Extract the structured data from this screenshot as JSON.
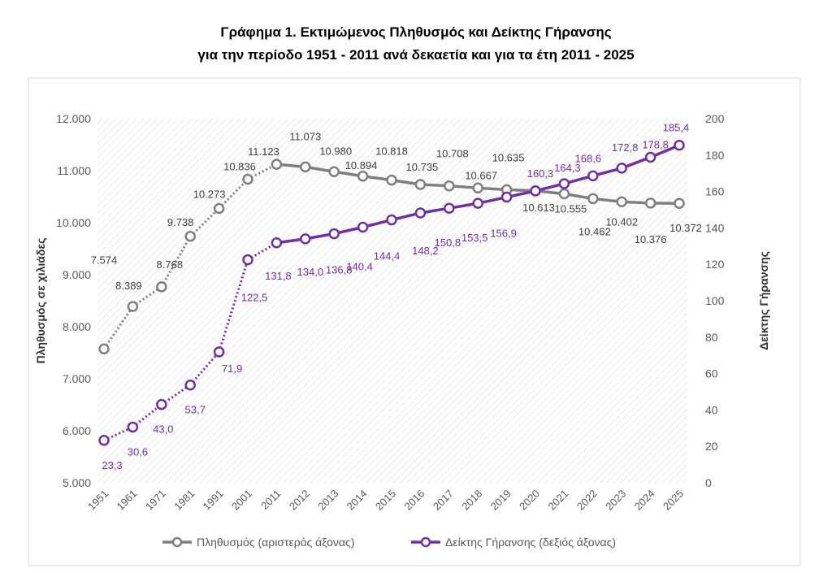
{
  "chart_data": {
    "type": "line",
    "title_line1": "Γράφημα 1. Εκτιμώμενος Πληθυσμός και Δείκτης Γήρανσης",
    "title_line2": "για την περίοδο 1951 - 2011 ανά δεκαετία και για τα έτη 2011 - 2025",
    "ylabel": "Πληθυσμός σε χιλιάδες",
    "y2label": "Δείκτης Γήρανσης",
    "ylim": [
      5000,
      12000
    ],
    "y2lim": [
      0,
      200
    ],
    "yticks": [
      "5.000",
      "6.000",
      "7.000",
      "8.000",
      "9.000",
      "10.000",
      "11.000",
      "12.000"
    ],
    "y2ticks": [
      "0",
      "20",
      "40",
      "60",
      "80",
      "100",
      "120",
      "140",
      "160",
      "180",
      "200"
    ],
    "categories": [
      "1951",
      "1961",
      "1971",
      "1981",
      "1991",
      "2001",
      "2011",
      "2012",
      "2013",
      "2014",
      "2015",
      "2016",
      "2017",
      "2018",
      "2019",
      "2020",
      "2021",
      "2022",
      "2023",
      "2024",
      "2025"
    ],
    "grid": "hatched background",
    "legend_position": "bottom",
    "series": [
      {
        "name": "Πληθυσμός (αριστερός άξονας)",
        "axis": "left",
        "color": "#7f7f7f",
        "values": [
          7574,
          8389,
          8768,
          9738,
          10273,
          10836,
          11123,
          11073,
          10980,
          10894,
          10818,
          10735,
          10708,
          10667,
          10635,
          10613,
          10555,
          10462,
          10402,
          10376,
          10372
        ],
        "labels": [
          "7.574",
          "8.389",
          "8.768",
          "9.738",
          "10.273",
          "10.836",
          "11.123",
          "11.073",
          "10.980",
          "10.894",
          "10.818",
          "10.735",
          "10.708",
          "10.667",
          "10.635",
          "10.613",
          "10.555",
          "10.462",
          "10.402",
          "10.376",
          "10.372"
        ]
      },
      {
        "name": "Δείκτης Γήρανσης (δεξιός άξονας)",
        "axis": "right",
        "color": "#7030a0",
        "values": [
          23.3,
          30.6,
          43.0,
          53.7,
          71.9,
          122.5,
          131.8,
          134.0,
          136.8,
          140.4,
          144.4,
          148.2,
          150.8,
          153.5,
          156.9,
          160.3,
          164.3,
          168.6,
          172.8,
          178.8,
          185.4
        ],
        "labels": [
          "23,3",
          "30,6",
          "43,0",
          "53,7",
          "71,9",
          "122,5",
          "131,8",
          "134,0",
          "136,8",
          "140,4",
          "144,4",
          "148,2",
          "150,8",
          "153,5",
          "156,9",
          "160,3",
          "164,3",
          "168,6",
          "172,8",
          "178,8",
          "185,4"
        ]
      }
    ]
  }
}
